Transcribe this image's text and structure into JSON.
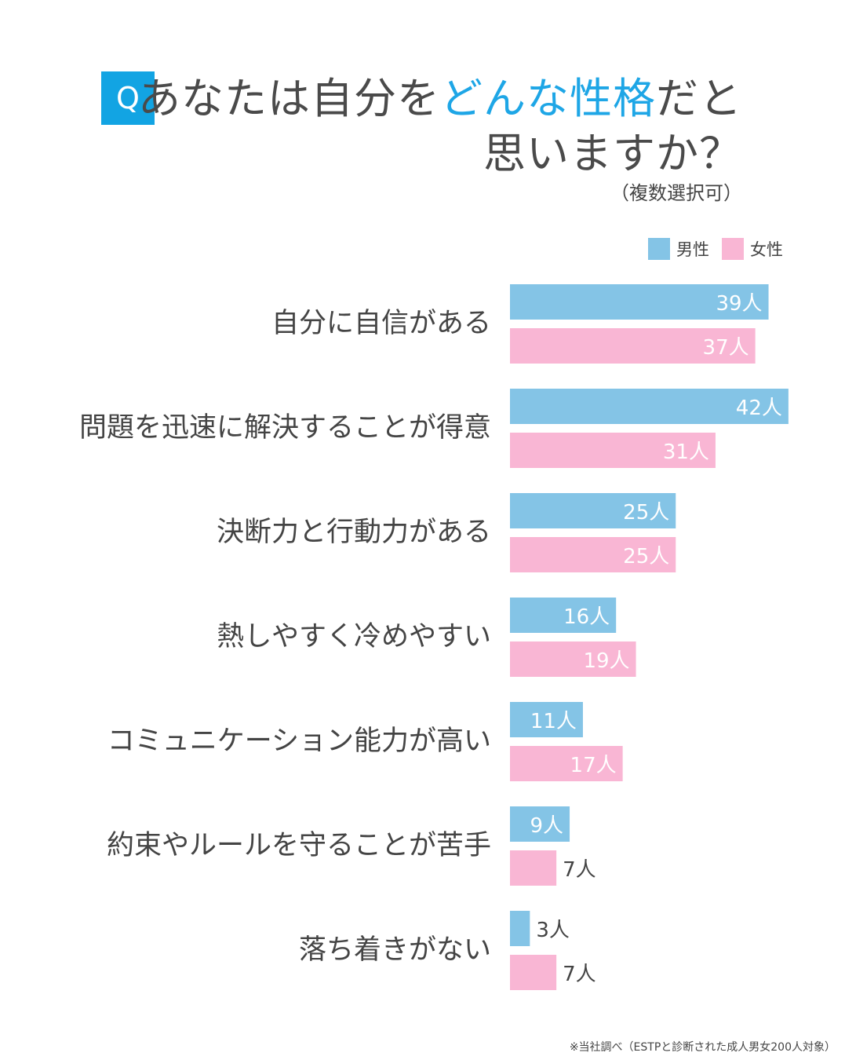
{
  "title": {
    "badge": "Q",
    "line1_pre": "あなたは自分を",
    "line1_highlight": "どんな性格",
    "line1_post": "だと",
    "line2": "思いますか？",
    "note": "（複数選択可）"
  },
  "colors": {
    "male": "#84c4e6",
    "female": "#f9b6d4",
    "badge": "#12a4e3",
    "highlight": "#1ea6e6"
  },
  "footnote": "※当社調べ（ESTPと診断された成人男女200人対象）",
  "chart_data": {
    "type": "bar",
    "orientation": "horizontal",
    "unit": "人",
    "categories": [
      "自分に自信がある",
      "問題を迅速に解決することが得意",
      "決断力と行動力がある",
      "熱しやすく冷めやすい",
      "コミュニケーション能力が高い",
      "約束やルールを守ることが苦手",
      "落ち着きがない"
    ],
    "series": [
      {
        "name": "男性",
        "values": [
          39,
          42,
          25,
          16,
          11,
          9,
          3
        ]
      },
      {
        "name": "女性",
        "values": [
          37,
          31,
          25,
          19,
          17,
          7,
          7
        ]
      }
    ],
    "legend": "top-right",
    "grid": false
  }
}
